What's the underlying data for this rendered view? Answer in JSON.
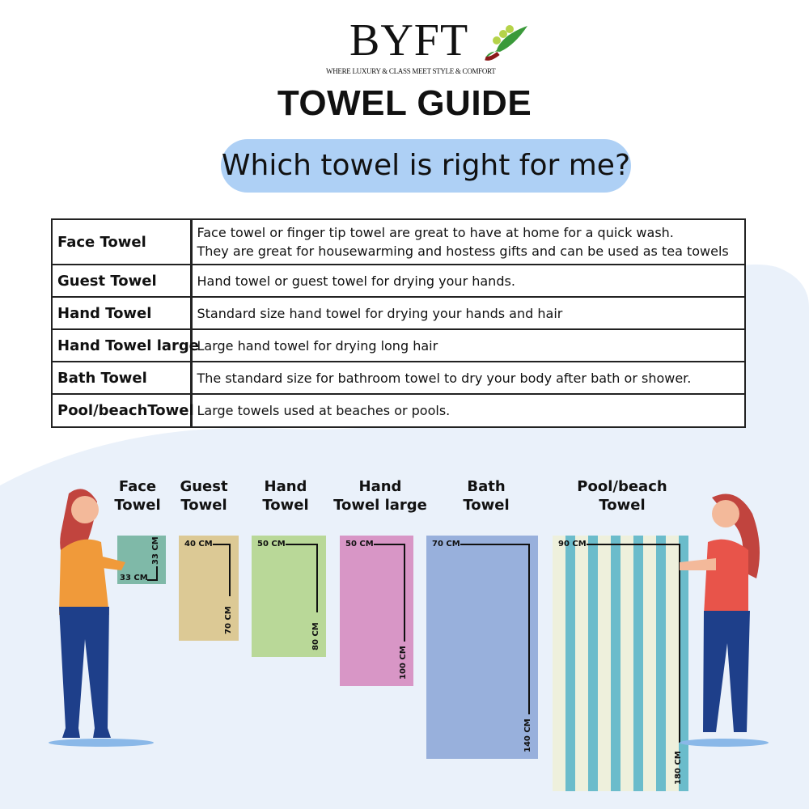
{
  "brand": {
    "name": "BYFT",
    "tagline": "WHERE LUXURY & CLASS MEET STYLE & COMFORT"
  },
  "title": "TOWEL GUIDE",
  "subtitle": "Which towel is right for me?",
  "table": [
    {
      "name": "Face Towel",
      "desc": "Face towel or finger tip towel are great to have at home for a quick wash.",
      "desc2": "They are great for housewarming and hostess gifts and can be used as tea towels"
    },
    {
      "name": "Guest Towel",
      "desc": "Hand towel or guest towel for drying your hands."
    },
    {
      "name": "Hand Towel",
      "desc": "Standard size hand towel for drying your hands and hair"
    },
    {
      "name": "Hand Towel large",
      "desc": "Large hand towel for drying long hair"
    },
    {
      "name": "Bath Towel",
      "desc": "The standard size for bathroom towel to dry your body after bath or shower."
    },
    {
      "name": "Pool/beachTowel",
      "desc": "Large towels used at beaches or pools."
    }
  ],
  "towels": [
    {
      "line1": "Face",
      "line2": "Towel",
      "width": "33 CM",
      "length": "33 CM",
      "color": "#7fb9a8"
    },
    {
      "line1": "Guest",
      "line2": "Towel",
      "width": "40 CM",
      "length": "70 CM",
      "color": "#dcc995"
    },
    {
      "line1": "Hand",
      "line2": "Towel",
      "width": "50 CM",
      "length": "80 CM",
      "color": "#b9d898"
    },
    {
      "line1": "Hand",
      "line2": "Towel large",
      "width": "50 CM",
      "length": "100 CM",
      "color": "#d896c6"
    },
    {
      "line1": "Bath",
      "line2": "Towel",
      "width": "70 CM",
      "length": "140 CM",
      "color": "#98b0dc"
    },
    {
      "line1": "Pool/beach",
      "line2": "Towel",
      "width": "90 CM",
      "length": "180 CM",
      "color": "#6bbccb"
    }
  ]
}
